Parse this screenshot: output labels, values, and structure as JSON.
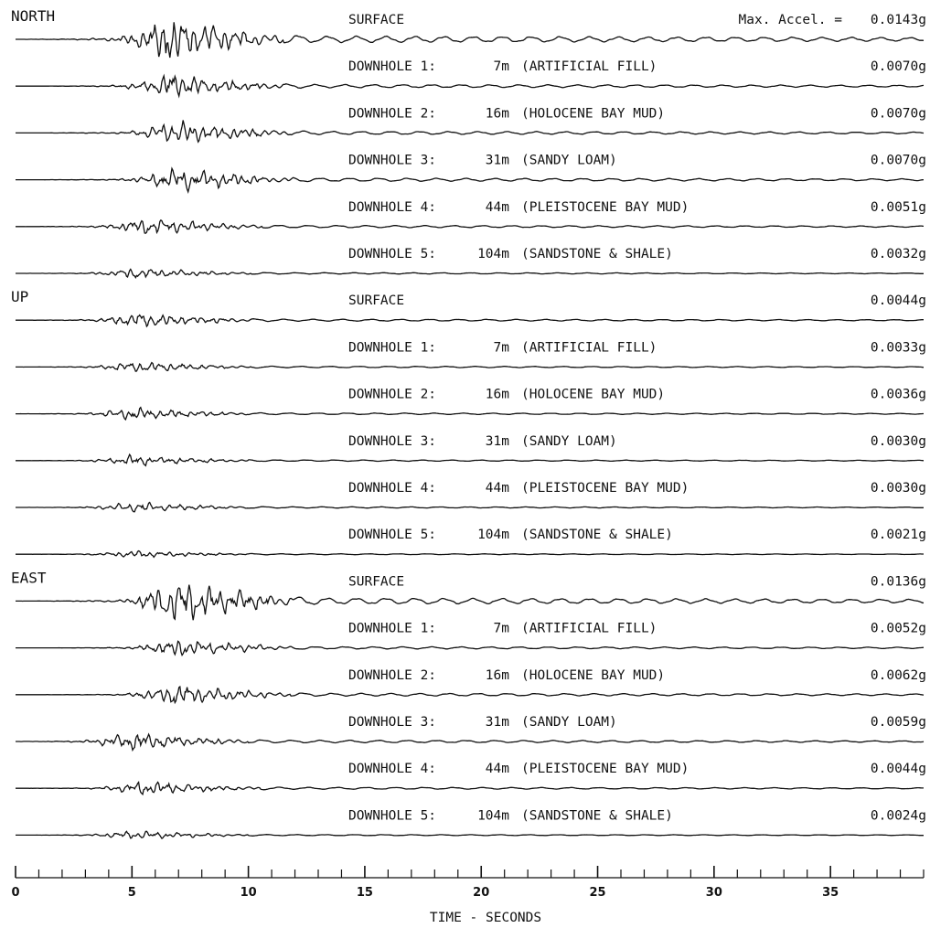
{
  "chart_data": {
    "type": "line",
    "title": "",
    "xlabel": "TIME - SECONDS",
    "ylabel": "",
    "xlim": [
      0,
      39
    ],
    "x_ticks_major": [
      0,
      5,
      10,
      15,
      20,
      25,
      30,
      35
    ],
    "x_ticks_minor_step": 1,
    "max_accel_prefix": "Max. Accel. =",
    "line_color": "#111111",
    "components": [
      {
        "name": "NORTH",
        "traces": [
          {
            "label": "SURFACE",
            "depth": "",
            "material": "",
            "max_accel": "0.0143g",
            "peak_time": 6.5,
            "amp": 1.0
          },
          {
            "label": "DOWNHOLE 1:",
            "depth": "7m",
            "material": "(ARTIFICIAL FILL)",
            "max_accel": "0.0070g",
            "peak_time": 6.6,
            "amp": 0.5
          },
          {
            "label": "DOWNHOLE 2:",
            "depth": "16m",
            "material": "(HOLOCENE BAY MUD)",
            "max_accel": "0.0070g",
            "peak_time": 6.8,
            "amp": 0.5
          },
          {
            "label": "DOWNHOLE 3:",
            "depth": "31m",
            "material": "(SANDY LOAM)",
            "max_accel": "0.0070g",
            "peak_time": 6.9,
            "amp": 0.5
          },
          {
            "label": "DOWNHOLE 4:",
            "depth": "44m",
            "material": "(PLEISTOCENE BAY MUD)",
            "max_accel": "0.0051g",
            "peak_time": 5.6,
            "amp": 0.36
          },
          {
            "label": "DOWNHOLE 5:",
            "depth": "104m",
            "material": "(SANDSTONE & SHALE)",
            "max_accel": "0.0032g",
            "peak_time": 5.1,
            "amp": 0.22
          }
        ]
      },
      {
        "name": "UP",
        "traces": [
          {
            "label": "SURFACE",
            "depth": "",
            "material": "",
            "max_accel": "0.0044g",
            "peak_time": 5.2,
            "amp": 0.31
          },
          {
            "label": "DOWNHOLE 1:",
            "depth": "7m",
            "material": "(ARTIFICIAL FILL)",
            "max_accel": "0.0033g",
            "peak_time": 5.1,
            "amp": 0.23
          },
          {
            "label": "DOWNHOLE 2:",
            "depth": "16m",
            "material": "(HOLOCENE BAY MUD)",
            "max_accel": "0.0036g",
            "peak_time": 5.0,
            "amp": 0.25
          },
          {
            "label": "DOWNHOLE 3:",
            "depth": "31m",
            "material": "(SANDY LOAM)",
            "max_accel": "0.0030g",
            "peak_time": 5.0,
            "amp": 0.21
          },
          {
            "label": "DOWNHOLE 4:",
            "depth": "44m",
            "material": "(PLEISTOCENE BAY MUD)",
            "max_accel": "0.0030g",
            "peak_time": 5.0,
            "amp": 0.21
          },
          {
            "label": "DOWNHOLE 5:",
            "depth": "104m",
            "material": "(SANDSTONE & SHALE)",
            "max_accel": "0.0021g",
            "peak_time": 4.9,
            "amp": 0.15
          }
        ]
      },
      {
        "name": "EAST",
        "traces": [
          {
            "label": "SURFACE",
            "depth": "",
            "material": "",
            "max_accel": "0.0136g",
            "peak_time": 6.9,
            "amp": 0.95
          },
          {
            "label": "DOWNHOLE 1:",
            "depth": "7m",
            "material": "(ARTIFICIAL FILL)",
            "max_accel": "0.0052g",
            "peak_time": 6.9,
            "amp": 0.36
          },
          {
            "label": "DOWNHOLE 2:",
            "depth": "16m",
            "material": "(HOLOCENE BAY MUD)",
            "max_accel": "0.0062g",
            "peak_time": 6.8,
            "amp": 0.43
          },
          {
            "label": "DOWNHOLE 3:",
            "depth": "31m",
            "material": "(SANDY LOAM)",
            "max_accel": "0.0059g",
            "peak_time": 5.0,
            "amp": 0.41
          },
          {
            "label": "DOWNHOLE 4:",
            "depth": "44m",
            "material": "(PLEISTOCENE BAY MUD)",
            "max_accel": "0.0044g",
            "peak_time": 5.5,
            "amp": 0.31
          },
          {
            "label": "DOWNHOLE 5:",
            "depth": "104m",
            "material": "(SANDSTONE & SHALE)",
            "max_accel": "0.0024g",
            "peak_time": 5.0,
            "amp": 0.17
          }
        ]
      }
    ]
  }
}
